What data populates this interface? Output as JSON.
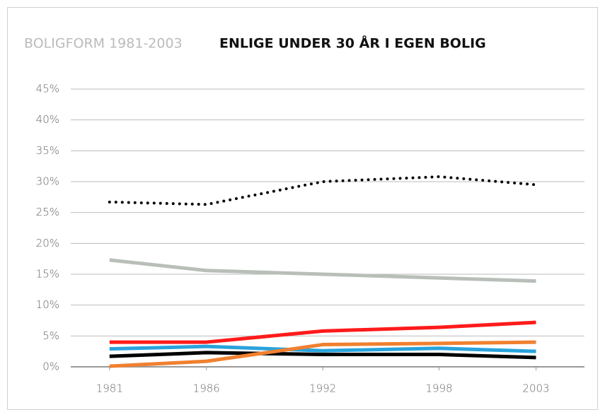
{
  "chart_data": {
    "type": "line",
    "subtitle": "BOLIGFORM 1981-2003",
    "title": "ENLIGE UNDER 30 ÅR I EGEN BOLIG",
    "x": [
      1981,
      1986,
      1992,
      1998,
      2003
    ],
    "xlim": [
      1979,
      2005.5
    ],
    "xticks": [
      1981,
      1986,
      1992,
      1998,
      2003
    ],
    "ylim": [
      0,
      45
    ],
    "yticks": [
      {
        "value": 0,
        "label": "0%"
      },
      {
        "value": 5,
        "label": "5%"
      },
      {
        "value": 10,
        "label": "10%"
      },
      {
        "value": 15,
        "label": "15%"
      },
      {
        "value": 20,
        "label": "20%"
      },
      {
        "value": 25,
        "label": "25%"
      },
      {
        "value": 30,
        "label": "30%"
      },
      {
        "value": 35,
        "label": "35%"
      },
      {
        "value": 40,
        "label": "40%"
      },
      {
        "value": 45,
        "label": "45%"
      }
    ],
    "grid": true,
    "series": [
      {
        "color": "#000000",
        "style": "dotted",
        "values": [
          26.7,
          26.3,
          30.0,
          30.8,
          29.5
        ]
      },
      {
        "color": "#b8bfb8",
        "style": "solid",
        "values": [
          17.3,
          15.6,
          15.0,
          14.4,
          13.9
        ]
      },
      {
        "color": "#ff1a1a",
        "style": "solid",
        "values": [
          4.0,
          4.0,
          5.8,
          6.4,
          7.2
        ]
      },
      {
        "color": "#29a3dc",
        "style": "solid",
        "values": [
          2.9,
          3.3,
          2.6,
          3.0,
          2.5
        ]
      },
      {
        "color": "#000000",
        "style": "solid",
        "values": [
          1.7,
          2.3,
          2.0,
          2.0,
          1.5
        ]
      },
      {
        "color": "#f08030",
        "style": "solid",
        "values": [
          0.1,
          0.9,
          3.6,
          3.8,
          4.0
        ]
      }
    ]
  }
}
